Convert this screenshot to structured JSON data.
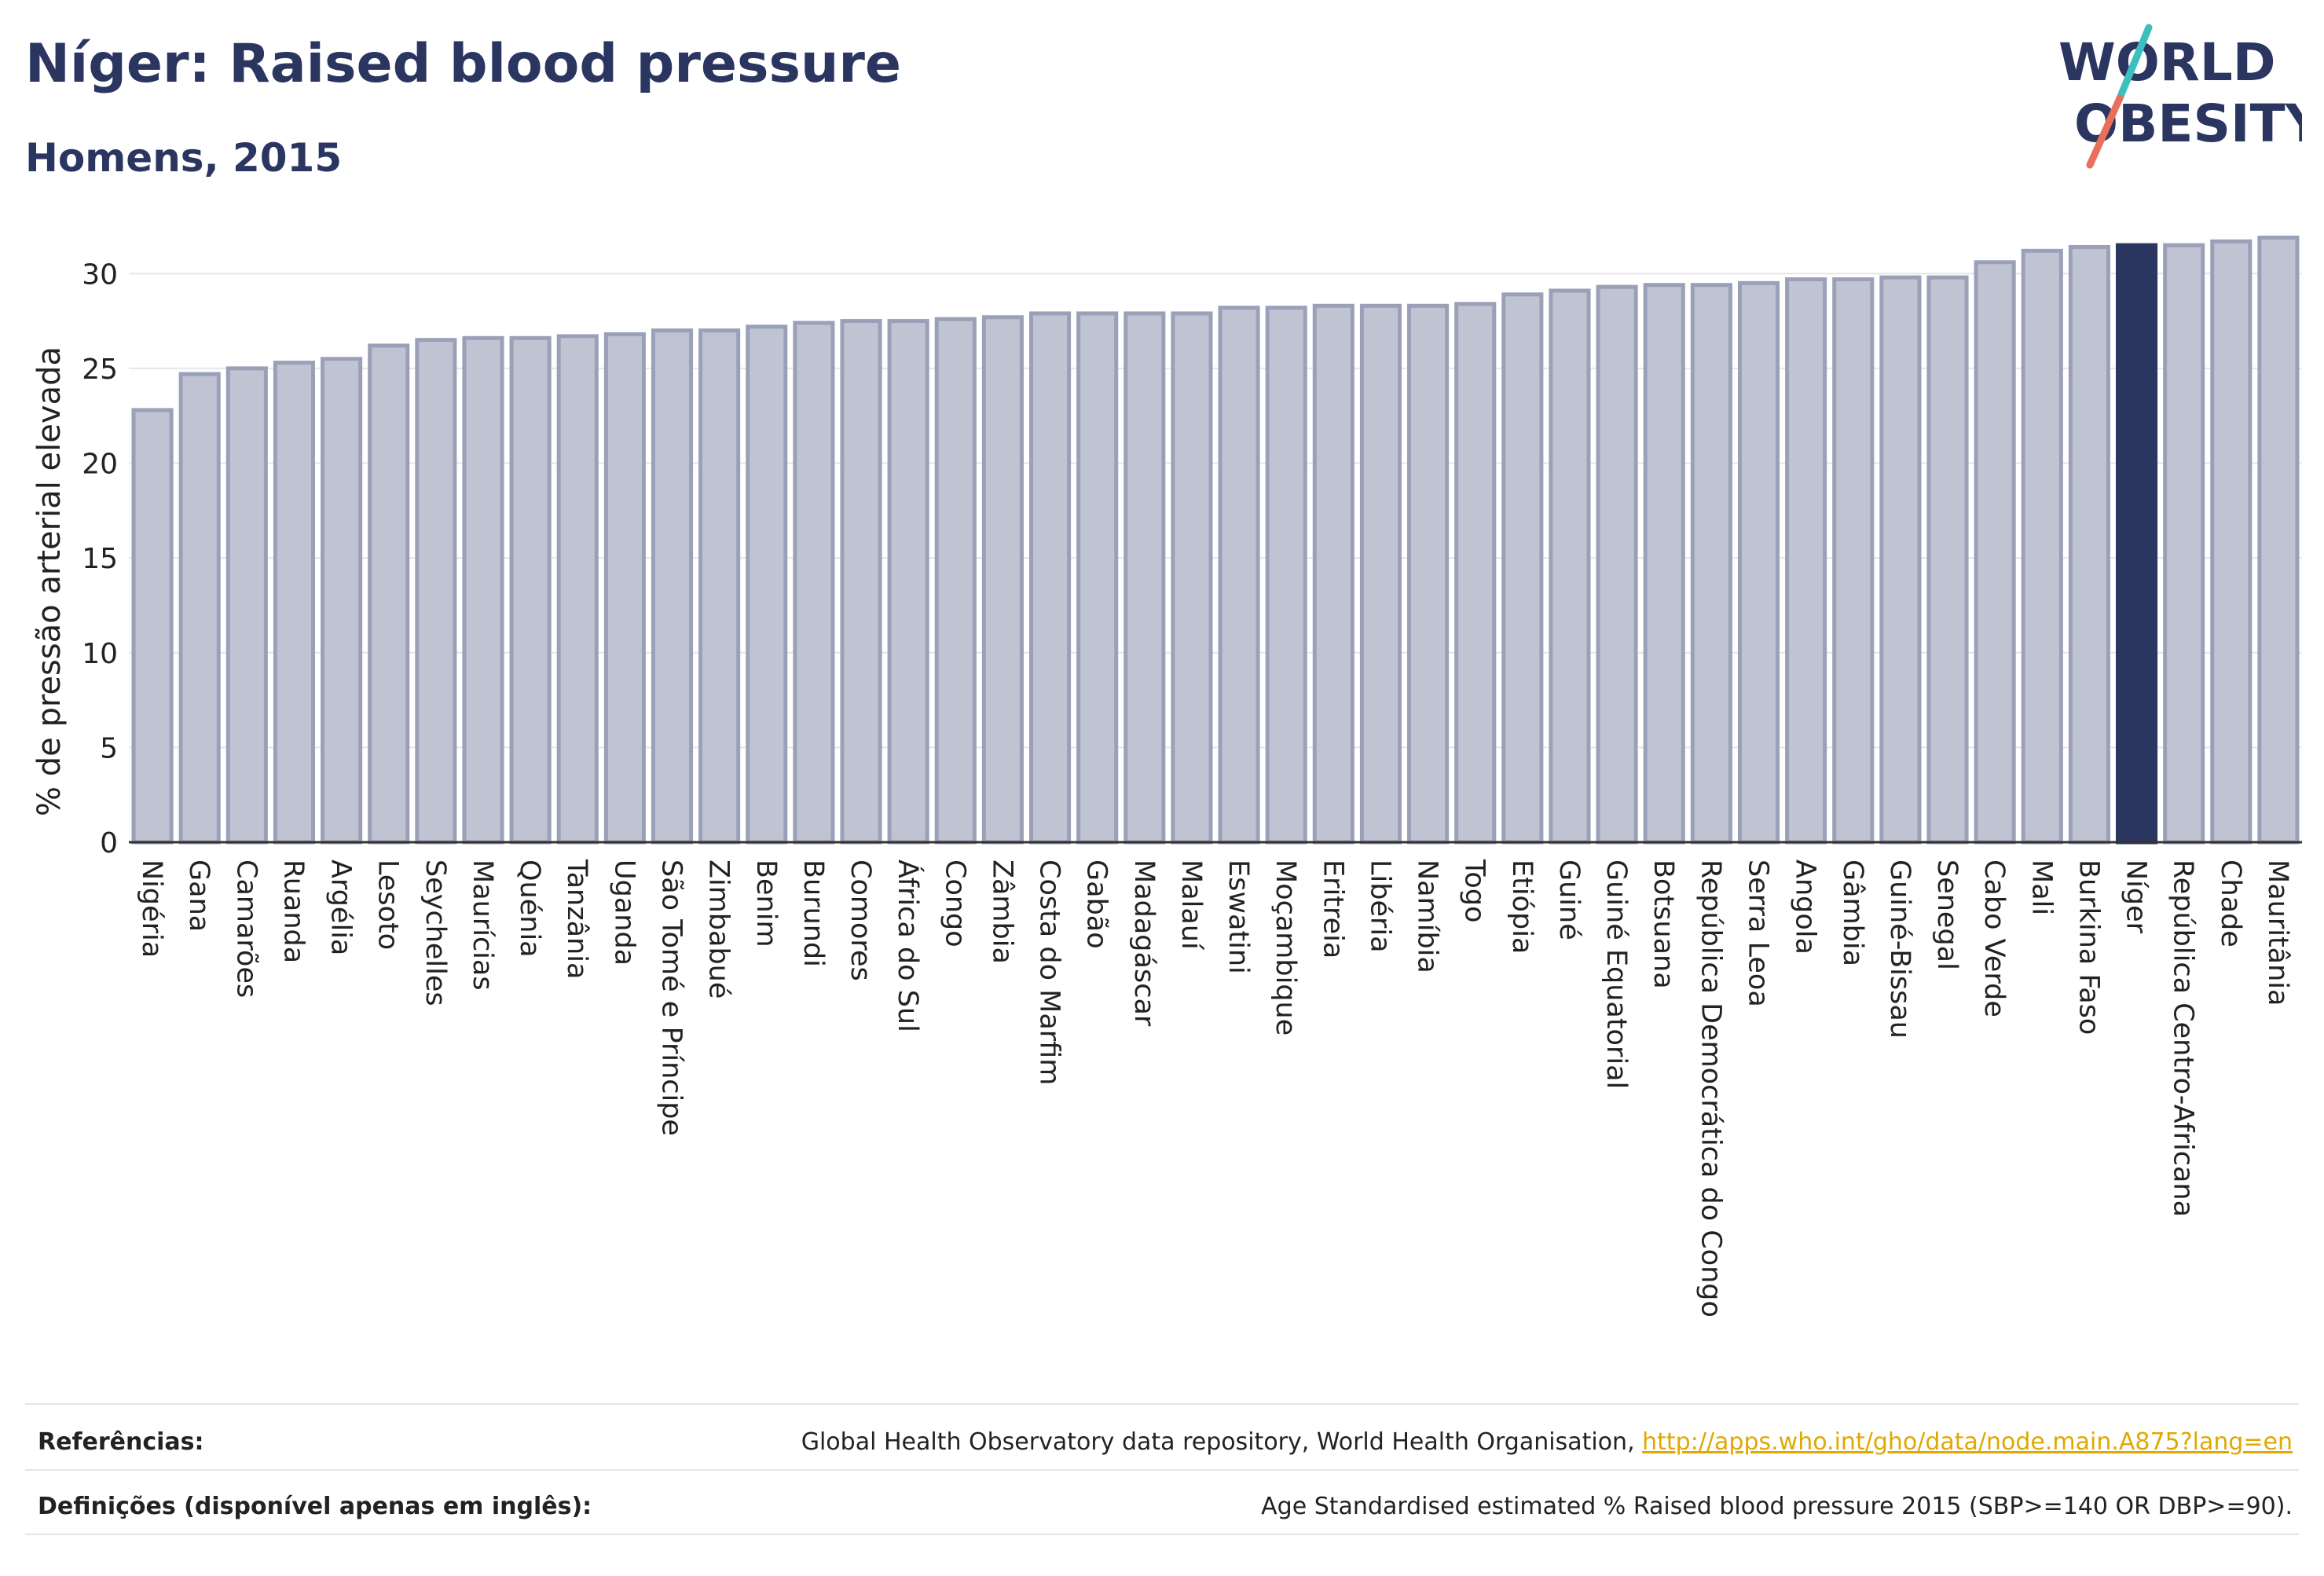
{
  "header": {
    "title": "Níger: Raised blood pressure",
    "subtitle": "Homens, 2015"
  },
  "logo": {
    "line1": "WORLD",
    "line2": "OBESITY",
    "colors": {
      "text": "#2a3560",
      "slash_teal": "#3cbfbf",
      "slash_coral": "#e8705a"
    }
  },
  "colors": {
    "bar_fill": "#c0c4d2",
    "bar_stroke": "#9aa0b8",
    "highlight_fill": "#2a3560",
    "axis_text": "#222222",
    "grid": "#e6e6ea"
  },
  "chart_data": {
    "type": "bar",
    "ylabel": "% de pressão arterial elevada",
    "ylim": [
      0,
      32
    ],
    "yticks": [
      0,
      5,
      10,
      15,
      20,
      25,
      30
    ],
    "grid": true,
    "highlight": "Níger",
    "categories": [
      "Nigéria",
      "Gana",
      "Camarões",
      "Ruanda",
      "Argélia",
      "Lesoto",
      "Seychelles",
      "Maurícias",
      "Quénia",
      "Tanzânia",
      "Uganda",
      "São Tomé e Príncipe",
      "Zimbabué",
      "Benim",
      "Burundi",
      "Comores",
      "África do Sul",
      "Congo",
      "Zâmbia",
      "Costa do Marfim",
      "Gabão",
      "Madagáscar",
      "Malauí",
      "Eswatini",
      "Moçambique",
      "Eritreia",
      "Libéria",
      "Namíbia",
      "Togo",
      "Etiópia",
      "Guiné",
      "Guiné Equatorial",
      "Botsuana",
      "República Democrática do Congo",
      "Serra Leoa",
      "Angola",
      "Gâmbia",
      "Guiné-Bissau",
      "Senegal",
      "Cabo Verde",
      "Mali",
      "Burkina Faso",
      "Níger",
      "República Centro-Africana",
      "Chade",
      "Mauritânia"
    ],
    "values": [
      22.8,
      24.7,
      25.0,
      25.3,
      25.5,
      26.2,
      26.5,
      26.6,
      26.6,
      26.7,
      26.8,
      27.0,
      27.0,
      27.2,
      27.4,
      27.5,
      27.5,
      27.6,
      27.7,
      27.9,
      27.9,
      27.9,
      27.9,
      28.2,
      28.2,
      28.3,
      28.3,
      28.3,
      28.4,
      28.9,
      29.1,
      29.3,
      29.4,
      29.4,
      29.5,
      29.7,
      29.7,
      29.8,
      29.8,
      30.6,
      31.2,
      31.4,
      31.5,
      31.5,
      31.7,
      31.9
    ]
  },
  "footer": {
    "references_label": "Referências:",
    "references_text": "Global Health Observatory data repository, World Health Organisation, ",
    "references_link": "http://apps.who.int/gho/data/node.main.A875?lang=en",
    "definitions_label": "Definições (disponível apenas em inglês):",
    "definitions_text": "Age Standardised estimated % Raised blood pressure 2015 (SBP>=140 OR DBP>=90)."
  }
}
